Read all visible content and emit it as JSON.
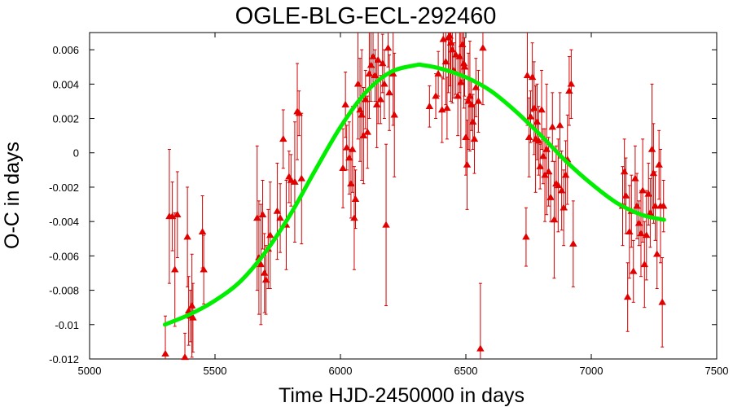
{
  "chart_data": {
    "type": "scatter",
    "title": "OGLE-BLG-ECL-292460",
    "xlabel": "Time HJD-2450000 in days",
    "ylabel": "O-C in days",
    "xlim": [
      5000,
      7500
    ],
    "ylim": [
      -0.012,
      0.007
    ],
    "x_ticks": [
      "5000",
      "5500",
      "6000",
      "6500",
      "7000",
      "7500"
    ],
    "y_ticks": [
      "-0.012",
      "-0.01",
      "-0.008",
      "-0.006",
      "-0.004",
      "-0.002",
      "0",
      "0.002",
      "0.004",
      "0.006"
    ],
    "grid": false,
    "colors": {
      "points": "#e00000",
      "errorbars": "#d00000",
      "fit": "#00ee00"
    },
    "series": [
      {
        "kind": "points_with_errorbars",
        "marker": "triangle",
        "points": [
          {
            "x": 5302,
            "y": -0.0117,
            "err": 0.0022
          },
          {
            "x": 5318,
            "y": -0.0037,
            "err": 0.0039
          },
          {
            "x": 5330,
            "y": -0.0037,
            "err": 0.002
          },
          {
            "x": 5340,
            "y": -0.0068,
            "err": 0.0033
          },
          {
            "x": 5350,
            "y": -0.0036,
            "err": 0.0025
          },
          {
            "x": 5380,
            "y": -0.0119,
            "err": 0.0014
          },
          {
            "x": 5390,
            "y": -0.0049,
            "err": 0.0029
          },
          {
            "x": 5395,
            "y": -0.0092,
            "err": 0.002
          },
          {
            "x": 5402,
            "y": -0.0095,
            "err": 0.0015
          },
          {
            "x": 5408,
            "y": -0.0089,
            "err": 0.003
          },
          {
            "x": 5412,
            "y": -0.0096,
            "err": 0.002
          },
          {
            "x": 5450,
            "y": -0.0046,
            "err": 0.0021
          },
          {
            "x": 5455,
            "y": -0.0068,
            "err": 0.002
          },
          {
            "x": 5668,
            "y": -0.0038,
            "err": 0.0042
          },
          {
            "x": 5675,
            "y": -0.0061,
            "err": 0.0033
          },
          {
            "x": 5683,
            "y": -0.0065,
            "err": 0.0035
          },
          {
            "x": 5690,
            "y": -0.0036,
            "err": 0.002
          },
          {
            "x": 5697,
            "y": -0.007,
            "err": 0.0023
          },
          {
            "x": 5703,
            "y": -0.0074,
            "err": 0.002
          },
          {
            "x": 5712,
            "y": -0.0056,
            "err": 0.0023
          },
          {
            "x": 5720,
            "y": -0.0048,
            "err": 0.0031
          },
          {
            "x": 5748,
            "y": -0.0034,
            "err": 0.0028
          },
          {
            "x": 5760,
            "y": -0.0038,
            "err": 0.002
          },
          {
            "x": 5772,
            "y": 0.0008,
            "err": 0.0017
          },
          {
            "x": 5784,
            "y": -0.0042,
            "err": 0.0026
          },
          {
            "x": 5795,
            "y": -0.0014,
            "err": 0.0015
          },
          {
            "x": 5803,
            "y": -0.0016,
            "err": 0.0015
          },
          {
            "x": 5818,
            "y": -0.0017,
            "err": 0.0035
          },
          {
            "x": 5828,
            "y": 0.0024,
            "err": 0.0028
          },
          {
            "x": 5835,
            "y": 0.0023,
            "err": 0.0013
          },
          {
            "x": 5845,
            "y": -0.0015,
            "err": 0.0038
          },
          {
            "x": 6010,
            "y": -0.0009,
            "err": 0.0023
          },
          {
            "x": 6020,
            "y": 0.0028,
            "err": 0.0019
          },
          {
            "x": 6025,
            "y": 0.0003,
            "err": 0.0013
          },
          {
            "x": 6035,
            "y": -0.0003,
            "err": 0.0021
          },
          {
            "x": 6042,
            "y": -0.0018,
            "err": 0.002
          },
          {
            "x": 6048,
            "y": 0.0002,
            "err": 0.0025
          },
          {
            "x": 6055,
            "y": -0.0038,
            "err": 0.003
          },
          {
            "x": 6060,
            "y": -0.0027,
            "err": 0.0017
          },
          {
            "x": 6070,
            "y": 0.004,
            "err": 0.0032
          },
          {
            "x": 6078,
            "y": 0.0025,
            "err": 0.003
          },
          {
            "x": 6085,
            "y": 0.0022,
            "err": 0.0038
          },
          {
            "x": 6092,
            "y": 0.001,
            "err": 0.0028
          },
          {
            "x": 6100,
            "y": 0.0031,
            "err": 0.0017
          },
          {
            "x": 6108,
            "y": 0.0012,
            "err": 0.0021
          },
          {
            "x": 6115,
            "y": 0.0046,
            "err": 0.0026
          },
          {
            "x": 6122,
            "y": 0.0051,
            "err": 0.0021
          },
          {
            "x": 6130,
            "y": 0.0056,
            "err": 0.0017
          },
          {
            "x": 6138,
            "y": 0.0045,
            "err": 0.0015
          },
          {
            "x": 6145,
            "y": 0.0028,
            "err": 0.0025
          },
          {
            "x": 6150,
            "y": 0.0054,
            "err": 0.0037
          },
          {
            "x": 6160,
            "y": 0.0031,
            "err": 0.0014
          },
          {
            "x": 6168,
            "y": 0.0052,
            "err": 0.0017
          },
          {
            "x": 6175,
            "y": 0.004,
            "err": 0.002
          },
          {
            "x": 6182,
            "y": -0.0042,
            "err": 0.0047
          },
          {
            "x": 6190,
            "y": 0.0061,
            "err": 0.0011
          },
          {
            "x": 6195,
            "y": 0.0035,
            "err": 0.0022
          },
          {
            "x": 6210,
            "y": 0.0046,
            "err": 0.003
          },
          {
            "x": 6215,
            "y": 0.0022,
            "err": 0.0036
          },
          {
            "x": 6355,
            "y": 0.0027,
            "err": 0.0012
          },
          {
            "x": 6380,
            "y": 0.0033,
            "err": 0.0013
          },
          {
            "x": 6390,
            "y": 0.0046,
            "err": 0.0013
          },
          {
            "x": 6405,
            "y": 0.0025,
            "err": 0.0019
          },
          {
            "x": 6410,
            "y": 0.0066,
            "err": 0.0023
          },
          {
            "x": 6420,
            "y": 0.0053,
            "err": 0.0025
          },
          {
            "x": 6425,
            "y": 0.0026,
            "err": 0.0018
          },
          {
            "x": 6430,
            "y": 0.0067,
            "err": 0.0032
          },
          {
            "x": 6436,
            "y": 0.0068,
            "err": 0.0029
          },
          {
            "x": 6440,
            "y": 0.0064,
            "err": 0.0034
          },
          {
            "x": 6446,
            "y": 0.006,
            "err": 0.0031
          },
          {
            "x": 6452,
            "y": 0.0048,
            "err": 0.0016
          },
          {
            "x": 6460,
            "y": 0.0057,
            "err": 0.0023
          },
          {
            "x": 6468,
            "y": 0.0033,
            "err": 0.0023
          },
          {
            "x": 6475,
            "y": 0.0056,
            "err": 0.0021
          },
          {
            "x": 6480,
            "y": 0.0041,
            "err": 0.0038
          },
          {
            "x": 6486,
            "y": 0.0063,
            "err": 0.0021
          },
          {
            "x": 6492,
            "y": 0.0052,
            "err": 0.0026
          },
          {
            "x": 6495,
            "y": 0.005,
            "err": 0.0017
          },
          {
            "x": 6500,
            "y": 0.0009,
            "err": 0.0022
          },
          {
            "x": 6505,
            "y": -0.0007,
            "err": 0.0026
          },
          {
            "x": 6510,
            "y": 0.003,
            "err": 0.0028
          },
          {
            "x": 6516,
            "y": 0.0033,
            "err": 0.0032
          },
          {
            "x": 6522,
            "y": 0.0028,
            "err": 0.0015
          },
          {
            "x": 6528,
            "y": 0.0018,
            "err": 0.0016
          },
          {
            "x": 6534,
            "y": 0.0008,
            "err": 0.002
          },
          {
            "x": 6540,
            "y": 0.0038,
            "err": 0.0017
          },
          {
            "x": 6550,
            "y": 0.003,
            "err": 0.0018
          },
          {
            "x": 6558,
            "y": -0.0114,
            "err": 0.0038
          },
          {
            "x": 6568,
            "y": 0.0061,
            "err": 0.0033
          },
          {
            "x": 6740,
            "y": -0.0049,
            "err": 0.0017
          },
          {
            "x": 6745,
            "y": 0.0045,
            "err": 0.0029
          },
          {
            "x": 6752,
            "y": 0.0009,
            "err": 0.0023
          },
          {
            "x": 6758,
            "y": 0.0021,
            "err": 0.0015
          },
          {
            "x": 6765,
            "y": 0.0044,
            "err": 0.002
          },
          {
            "x": 6772,
            "y": 0.0026,
            "err": 0.0027
          },
          {
            "x": 6778,
            "y": 0.0008,
            "err": 0.0031
          },
          {
            "x": 6784,
            "y": 0.0018,
            "err": 0.0022
          },
          {
            "x": 6790,
            "y": 0.0007,
            "err": 0.002
          },
          {
            "x": 6796,
            "y": -0.0008,
            "err": 0.0013
          },
          {
            "x": 6802,
            "y": 0.0025,
            "err": 0.0023
          },
          {
            "x": 6808,
            "y": -0.0002,
            "err": 0.0016
          },
          {
            "x": 6815,
            "y": -0.0013,
            "err": 0.0027
          },
          {
            "x": 6822,
            "y": 0.0002,
            "err": 0.0038
          },
          {
            "x": 6830,
            "y": -0.0011,
            "err": 0.002
          },
          {
            "x": 6838,
            "y": -0.0026,
            "err": 0.0014
          },
          {
            "x": 6845,
            "y": 0.0015,
            "err": 0.002
          },
          {
            "x": 6852,
            "y": -0.0039,
            "err": 0.0034
          },
          {
            "x": 6860,
            "y": -0.0018,
            "err": 0.0022
          },
          {
            "x": 6868,
            "y": -0.0019,
            "err": 0.0027
          },
          {
            "x": 6875,
            "y": 0.0016,
            "err": 0.0019
          },
          {
            "x": 6882,
            "y": -0.0022,
            "err": 0.0023
          },
          {
            "x": 6890,
            "y": -0.0032,
            "err": 0.0022
          },
          {
            "x": 6898,
            "y": -0.0013,
            "err": 0.002
          },
          {
            "x": 6905,
            "y": -0.0004,
            "err": 0.0026
          },
          {
            "x": 6912,
            "y": 0.0036,
            "err": 0.002
          },
          {
            "x": 6920,
            "y": 0.004,
            "err": 0.002
          },
          {
            "x": 6928,
            "y": -0.0053,
            "err": 0.0025
          },
          {
            "x": 7125,
            "y": -0.0031,
            "err": 0.0023
          },
          {
            "x": 7132,
            "y": -0.0011,
            "err": 0.0019
          },
          {
            "x": 7138,
            "y": -0.0025,
            "err": 0.0022
          },
          {
            "x": 7145,
            "y": -0.0084,
            "err": 0.002
          },
          {
            "x": 7152,
            "y": -0.0046,
            "err": 0.0027
          },
          {
            "x": 7160,
            "y": -0.0034,
            "err": 0.0021
          },
          {
            "x": 7168,
            "y": -0.0069,
            "err": 0.0018
          },
          {
            "x": 7175,
            "y": -0.0015,
            "err": 0.0019
          },
          {
            "x": 7182,
            "y": -0.0031,
            "err": 0.0019
          },
          {
            "x": 7190,
            "y": -0.0041,
            "err": 0.0013
          },
          {
            "x": 7198,
            "y": -0.0047,
            "err": 0.0025
          },
          {
            "x": 7205,
            "y": -0.0022,
            "err": 0.003
          },
          {
            "x": 7212,
            "y": -0.0065,
            "err": 0.0025
          },
          {
            "x": 7220,
            "y": -0.0048,
            "err": 0.0026
          },
          {
            "x": 7228,
            "y": -0.0024,
            "err": 0.0018
          },
          {
            "x": 7235,
            "y": -0.0035,
            "err": 0.002
          },
          {
            "x": 7242,
            "y": 0.0002,
            "err": 0.0038
          },
          {
            "x": 7248,
            "y": -0.0012,
            "err": 0.0029
          },
          {
            "x": 7255,
            "y": -0.0031,
            "err": 0.002
          },
          {
            "x": 7262,
            "y": -0.0059,
            "err": 0.002
          },
          {
            "x": 7270,
            "y": -0.0007,
            "err": 0.002
          },
          {
            "x": 7276,
            "y": -0.0031,
            "err": 0.0033
          },
          {
            "x": 7283,
            "y": -0.0087,
            "err": 0.0026
          },
          {
            "x": 7288,
            "y": -0.0031,
            "err": 0.0015
          }
        ]
      },
      {
        "kind": "fit_line",
        "x": [
          5300,
          5400,
          5500,
          5600,
          5700,
          5800,
          5900,
          6000,
          6100,
          6200,
          6300,
          6330,
          6400,
          6500,
          6600,
          6700,
          6800,
          6900,
          7000,
          7100,
          7200,
          7290
        ],
        "y": [
          -0.01,
          -0.0094,
          -0.0086,
          -0.0075,
          -0.0058,
          -0.0036,
          -0.001,
          0.0015,
          0.0035,
          0.0047,
          0.0051,
          0.0051,
          0.0049,
          0.0044,
          0.0036,
          0.0024,
          0.001,
          -0.0005,
          -0.0018,
          -0.0029,
          -0.0036,
          -0.0039
        ]
      }
    ]
  }
}
